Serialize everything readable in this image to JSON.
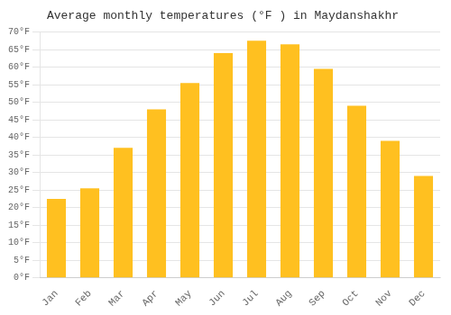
{
  "chart_data": {
    "type": "bar",
    "title": "Average monthly temperatures (°F ) in Maydanshakhr",
    "categories": [
      "Jan",
      "Feb",
      "Mar",
      "Apr",
      "May",
      "Jun",
      "Jul",
      "Aug",
      "Sep",
      "Oct",
      "Nov",
      "Dec"
    ],
    "values": [
      22.5,
      25.5,
      37.0,
      48.0,
      55.5,
      64.0,
      67.5,
      66.5,
      59.5,
      49.0,
      39.0,
      29.0
    ],
    "color": "#FFC020",
    "ylim": [
      0,
      70
    ],
    "yticks": [
      {
        "value": 0,
        "label": "0°F"
      },
      {
        "value": 5,
        "label": "5°F"
      },
      {
        "value": 10,
        "label": "10°F"
      },
      {
        "value": 15,
        "label": "15°F"
      },
      {
        "value": 20,
        "label": "20°F"
      },
      {
        "value": 25,
        "label": "25°F"
      },
      {
        "value": 30,
        "label": "30°F"
      },
      {
        "value": 35,
        "label": "35°F"
      },
      {
        "value": 40,
        "label": "40°F"
      },
      {
        "value": 45,
        "label": "45°F"
      },
      {
        "value": 50,
        "label": "50°F"
      },
      {
        "value": 55,
        "label": "55°F"
      },
      {
        "value": 60,
        "label": "60°F"
      },
      {
        "value": 65,
        "label": "65°F"
      },
      {
        "value": 70,
        "label": "70°F"
      }
    ],
    "grid": true
  }
}
